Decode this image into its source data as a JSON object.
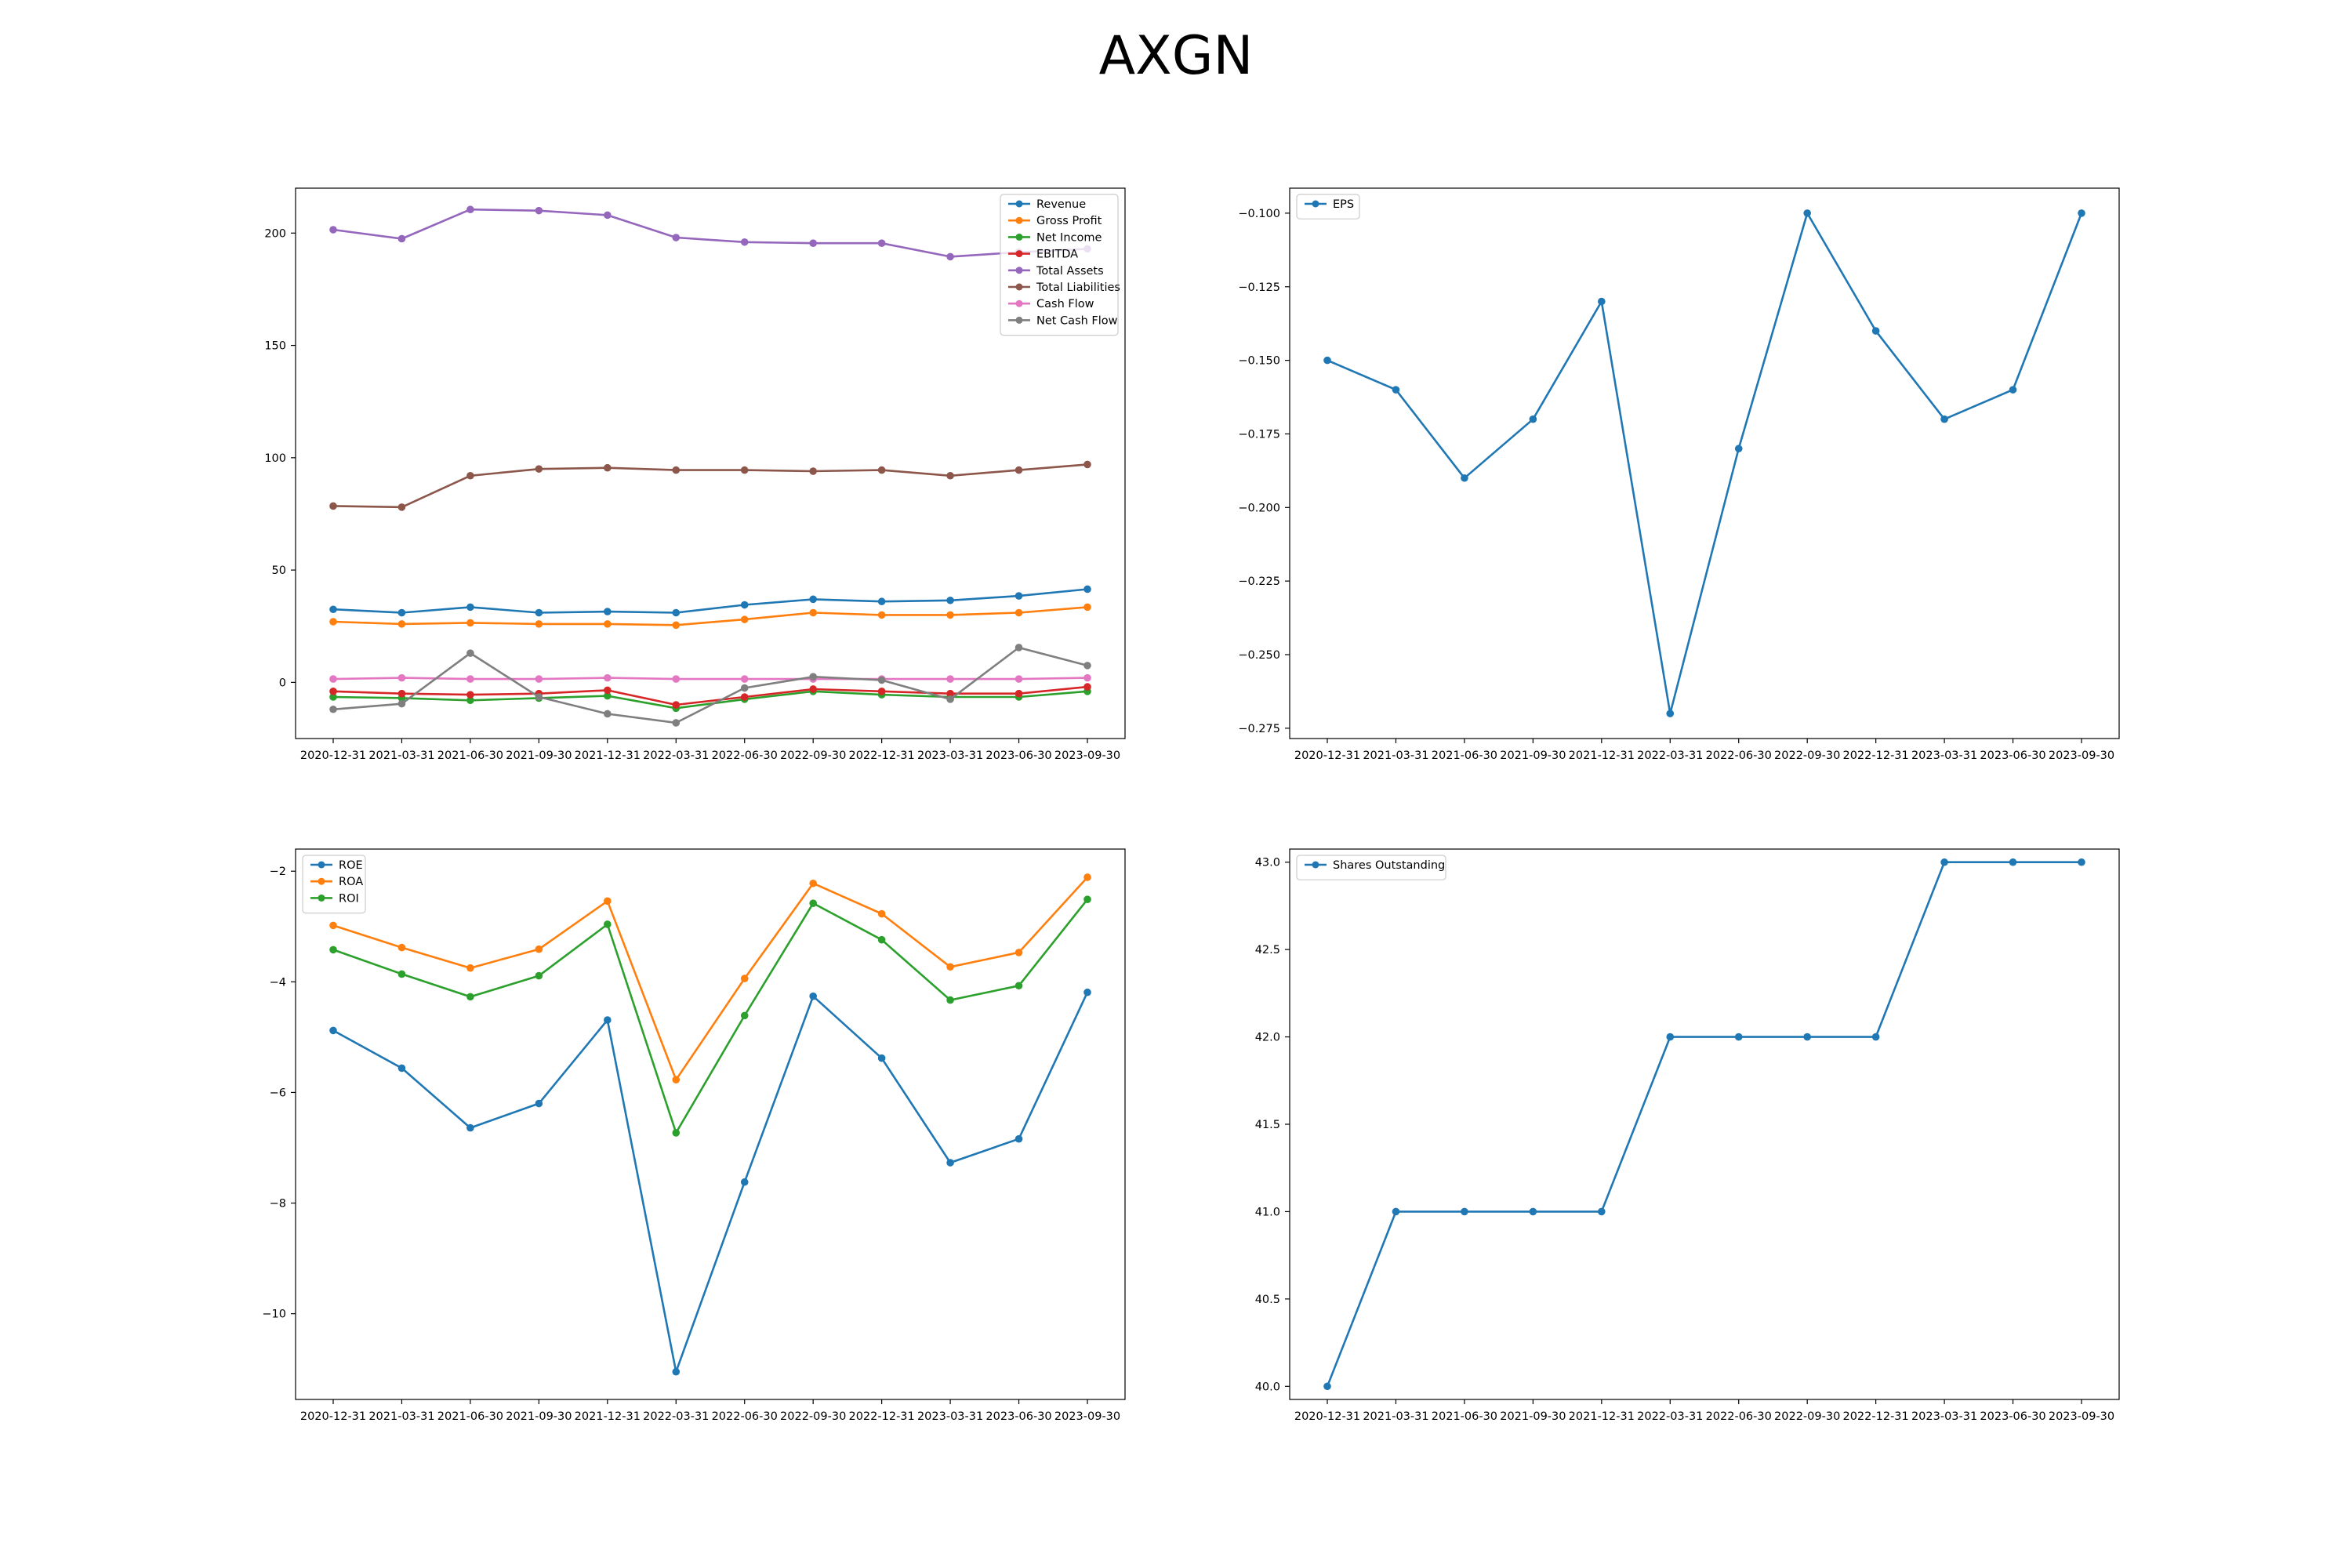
{
  "figure": {
    "title": "AXGN"
  },
  "chart_data": [
    {
      "type": "line",
      "x": [
        "2020-12-31",
        "2021-03-31",
        "2021-06-30",
        "2021-09-30",
        "2021-12-31",
        "2022-03-31",
        "2022-06-30",
        "2022-09-30",
        "2022-12-31",
        "2023-03-31",
        "2023-06-30",
        "2023-09-30"
      ],
      "ylim": [
        -25,
        220
      ],
      "yticks": [
        0,
        50,
        100,
        150,
        200
      ],
      "grid": false,
      "legend_position": "top-right",
      "series": [
        {
          "name": "Revenue",
          "color": "#1f77b4",
          "values": [
            32.5,
            31.0,
            33.5,
            31.0,
            31.5,
            31.0,
            34.5,
            37.0,
            36.0,
            36.5,
            38.5,
            41.5
          ]
        },
        {
          "name": "Gross Profit",
          "color": "#ff7f0e",
          "values": [
            27.0,
            26.0,
            26.5,
            26.0,
            26.0,
            25.5,
            28.0,
            31.0,
            30.0,
            30.0,
            31.0,
            33.5
          ]
        },
        {
          "name": "Net Income",
          "color": "#2ca02c",
          "values": [
            -6.5,
            -7.0,
            -8.0,
            -7.0,
            -6.0,
            -11.5,
            -7.5,
            -4.0,
            -5.5,
            -6.5,
            -6.5,
            -4.0
          ]
        },
        {
          "name": "EBITDA",
          "color": "#d62728",
          "values": [
            -4.0,
            -5.0,
            -5.5,
            -5.0,
            -3.5,
            -10.0,
            -6.5,
            -3.0,
            -4.0,
            -5.0,
            -5.0,
            -2.0
          ]
        },
        {
          "name": "Total Assets",
          "color": "#9467bd",
          "values": [
            201.5,
            197.5,
            210.5,
            210.0,
            208.0,
            198.0,
            196.0,
            195.5,
            195.5,
            189.5,
            191.5,
            193.0
          ]
        },
        {
          "name": "Total Liabilities",
          "color": "#8c564b",
          "values": [
            78.5,
            78.0,
            92.0,
            95.0,
            95.5,
            94.5,
            94.5,
            94.0,
            94.5,
            92.0,
            94.5,
            97.0
          ]
        },
        {
          "name": "Cash Flow",
          "color": "#e377c2",
          "values": [
            1.5,
            2.0,
            1.5,
            1.5,
            2.0,
            1.5,
            1.5,
            1.5,
            1.5,
            1.5,
            1.5,
            2.0
          ]
        },
        {
          "name": "Net Cash Flow",
          "color": "#7f7f7f",
          "values": [
            -12.0,
            -9.5,
            13.0,
            -6.5,
            -14.0,
            -18.0,
            -2.5,
            2.5,
            1.0,
            -7.5,
            15.5,
            7.5
          ]
        }
      ]
    },
    {
      "type": "line",
      "x": [
        "2020-12-31",
        "2021-03-31",
        "2021-06-30",
        "2021-09-30",
        "2021-12-31",
        "2022-03-31",
        "2022-06-30",
        "2022-09-30",
        "2022-12-31",
        "2023-03-31",
        "2023-06-30",
        "2023-09-30"
      ],
      "ylim": [
        -0.2785,
        -0.0915
      ],
      "yticks": [
        -0.275,
        -0.25,
        -0.225,
        -0.2,
        -0.175,
        -0.15,
        -0.125,
        -0.1
      ],
      "grid": false,
      "legend_position": "top-left",
      "series": [
        {
          "name": "EPS",
          "color": "#1f77b4",
          "values": [
            -0.15,
            -0.16,
            -0.19,
            -0.17,
            -0.13,
            -0.27,
            -0.18,
            -0.1,
            -0.14,
            -0.17,
            -0.16,
            -0.1
          ]
        }
      ]
    },
    {
      "type": "line",
      "x": [
        "2020-12-31",
        "2021-03-31",
        "2021-06-30",
        "2021-09-30",
        "2021-12-31",
        "2022-03-31",
        "2022-06-30",
        "2022-09-30",
        "2022-12-31",
        "2023-03-31",
        "2023-06-30",
        "2023-09-30"
      ],
      "ylim": [
        -11.55,
        -1.6
      ],
      "yticks": [
        -10,
        -8,
        -6,
        -4,
        -2
      ],
      "grid": false,
      "legend_position": "top-left",
      "series": [
        {
          "name": "ROE",
          "color": "#1f77b4",
          "values": [
            -4.88,
            -5.56,
            -6.64,
            -6.2,
            -4.69,
            -11.05,
            -7.62,
            -4.26,
            -5.38,
            -7.27,
            -6.84,
            -4.19
          ]
        },
        {
          "name": "ROA",
          "color": "#ff7f0e",
          "values": [
            -2.98,
            -3.38,
            -3.75,
            -3.41,
            -2.54,
            -5.77,
            -3.94,
            -2.22,
            -2.77,
            -3.73,
            -3.47,
            -2.11
          ]
        },
        {
          "name": "ROI",
          "color": "#2ca02c",
          "values": [
            -3.42,
            -3.86,
            -4.27,
            -3.89,
            -2.96,
            -6.73,
            -4.61,
            -2.58,
            -3.24,
            -4.33,
            -4.07,
            -2.51
          ]
        }
      ]
    },
    {
      "type": "line",
      "x": [
        "2020-12-31",
        "2021-03-31",
        "2021-06-30",
        "2021-09-30",
        "2021-12-31",
        "2022-03-31",
        "2022-06-30",
        "2022-09-30",
        "2022-12-31",
        "2023-03-31",
        "2023-06-30",
        "2023-09-30"
      ],
      "ylim": [
        39.925,
        43.075
      ],
      "yticks": [
        40.0,
        40.5,
        41.0,
        41.5,
        42.0,
        42.5,
        43.0
      ],
      "grid": false,
      "legend_position": "top-left",
      "series": [
        {
          "name": "Shares Outstanding",
          "color": "#1f77b4",
          "values": [
            40,
            41,
            41,
            41,
            41,
            42,
            42,
            42,
            42,
            43,
            43,
            43
          ]
        }
      ]
    }
  ]
}
